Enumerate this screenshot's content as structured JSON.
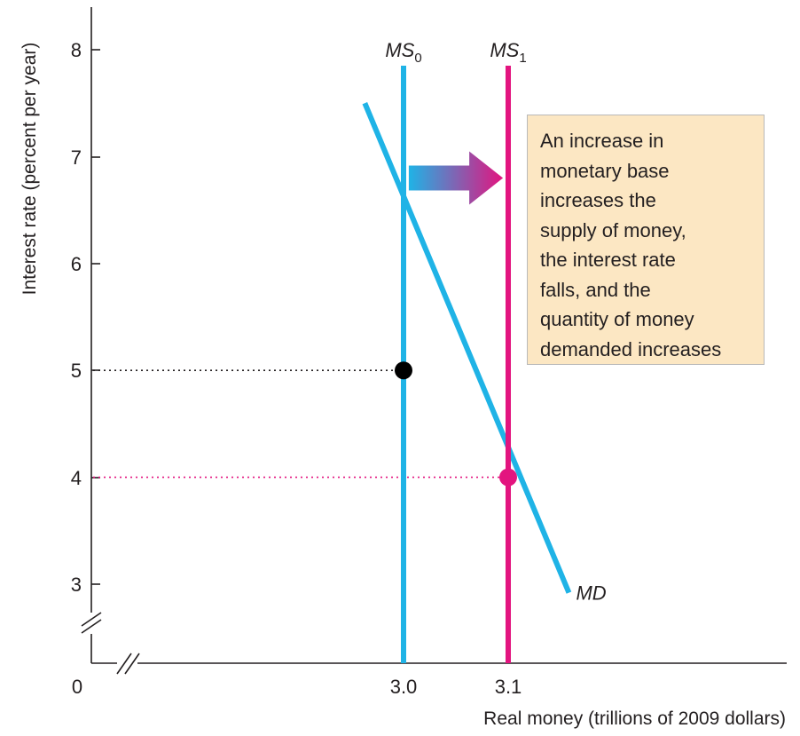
{
  "chart_data": {
    "type": "line",
    "xlabel": "Real money (trillions of 2009 dollars)",
    "ylabel": "Interest rate (percent per year)",
    "x_origin_label": "0",
    "y_ticks": [
      "3",
      "4",
      "5",
      "6",
      "7",
      "8"
    ],
    "x_ticks": [
      "3.0",
      "3.1"
    ],
    "ylim": [
      2.5,
      8.3
    ],
    "xlim": [
      2.95,
      3.22
    ],
    "series": [
      {
        "name": "MD",
        "type": "line",
        "points": [
          [
            2.963,
            7.5
          ],
          [
            3.158,
            2.92
          ]
        ],
        "color": "#1fb3e6"
      },
      {
        "name": "MS",
        "sub": "0",
        "type": "vline",
        "x": 3.0,
        "y_top": 7.85,
        "color": "#1fb3e6"
      },
      {
        "name": "MS",
        "sub": "1",
        "type": "vline",
        "x": 3.1,
        "y_top": 7.85,
        "color": "#e3147f"
      }
    ],
    "equilibria": [
      {
        "x": 3.0,
        "y": 5,
        "color": "#000000",
        "guide_color": "#231f20"
      },
      {
        "x": 3.1,
        "y": 4,
        "color": "#e3147f",
        "guide_color": "#e3147f"
      }
    ],
    "highlight_color": "#e3147f",
    "shift_arrow": {
      "from_x": 3.005,
      "to_x": 3.095,
      "y": 6.8,
      "from_color": "#1fb3e6",
      "to_color": "#e3147f"
    },
    "annotation": {
      "lines": [
        "An increase in",
        "monetary base",
        "increases the",
        "supply of money,",
        "the interest rate",
        "falls, and the",
        "quantity of money",
        "demanded increases"
      ],
      "background": "#fce7c3"
    }
  }
}
